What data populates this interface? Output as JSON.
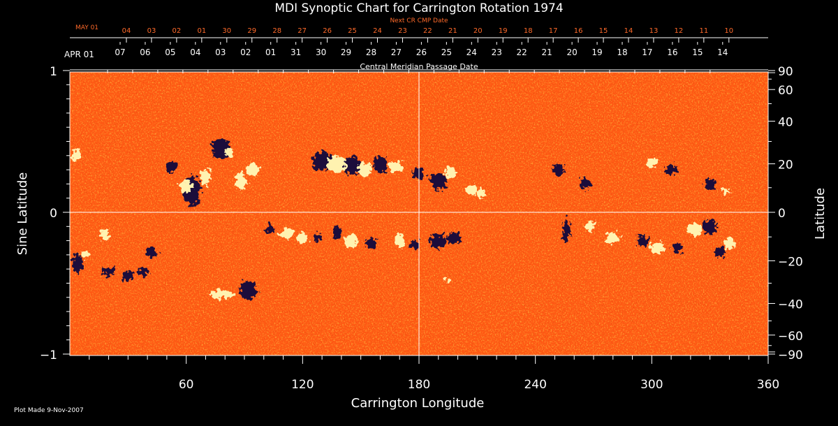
{
  "chart_data": {
    "type": "heatmap",
    "title": "MDI Synoptic Chart for Carrington Rotation 1974",
    "xlabel": "Carrington Longitude",
    "ylabel_left": "Sine Latitude",
    "ylabel_right": "Latitude",
    "xlim": [
      0,
      360
    ],
    "ylim": [
      -1,
      1
    ],
    "x_ticks": [
      "60",
      "120",
      "180",
      "240",
      "300",
      "360"
    ],
    "y_ticks_left": [
      "1",
      "0",
      "−1"
    ],
    "y_ticks_right": [
      "90",
      "60",
      "40",
      "20",
      "0",
      "−20",
      "−40",
      "−60",
      "−90"
    ],
    "top_axis_label": "Central Meridian Passage Date",
    "top_axis_month": "APR 01",
    "top_axis_dates": [
      "07",
      "06",
      "05",
      "04",
      "03",
      "02",
      "01",
      "31",
      "30",
      "29",
      "28",
      "27",
      "26",
      "25",
      "24",
      "23",
      "22",
      "21",
      "20",
      "19",
      "18",
      "17",
      "16",
      "15",
      "14"
    ],
    "next_axis_label": "Next CR CMP Date",
    "next_axis_month": "MAY 01",
    "next_axis_dates": [
      "04",
      "03",
      "02",
      "01",
      "30",
      "29",
      "28",
      "27",
      "26",
      "25",
      "24",
      "23",
      "22",
      "21",
      "20",
      "19",
      "18",
      "17",
      "16",
      "15",
      "14",
      "13",
      "12",
      "11",
      "10"
    ],
    "footer": "Plot Made  9-Nov-2007",
    "colors": {
      "background": "#ff5a14",
      "positive": "#fff2b0",
      "negative": "#1a0a3a",
      "accent_text": "#ff6a2a"
    }
  }
}
